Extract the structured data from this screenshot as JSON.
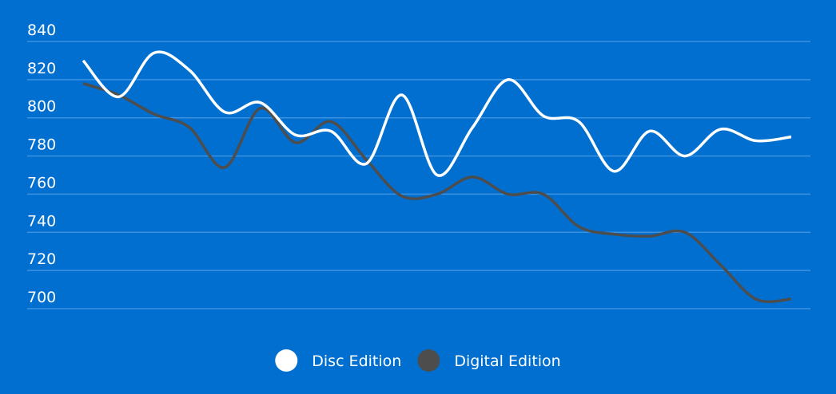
{
  "chart_data": {
    "type": "line",
    "categories": [
      null,
      null,
      null,
      null,
      null,
      null,
      null,
      null,
      null,
      null,
      null,
      null,
      null,
      null,
      null,
      null,
      null,
      null,
      null,
      null,
      null
    ],
    "series": [
      {
        "name": "Disc Edition",
        "color": "#ffffff",
        "values": [
          830,
          811,
          834,
          825,
          803,
          808,
          791,
          793,
          776,
          812,
          770,
          795,
          820,
          801,
          798,
          772,
          793,
          780,
          794,
          788,
          790
        ]
      },
      {
        "name": "Digital Edition",
        "color": "#4d4d4d",
        "values": [
          818,
          812,
          802,
          795,
          774,
          805,
          787,
          798,
          778,
          759,
          760,
          769,
          760,
          760,
          743,
          739,
          738,
          740,
          723,
          705,
          705
        ]
      }
    ],
    "ylim": [
      700,
      840
    ],
    "yticks": [
      700,
      720,
      740,
      760,
      780,
      800,
      820,
      840
    ],
    "grid": true,
    "grid_color": "#3d92e0",
    "legend": "bottom"
  }
}
